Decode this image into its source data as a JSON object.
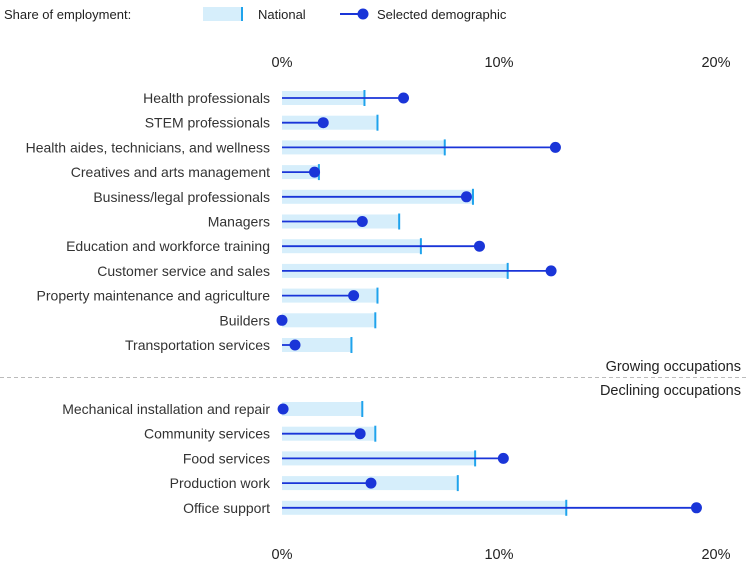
{
  "chart_data": {
    "type": "dot-bar",
    "legend_title": "Share of employment:",
    "legend": [
      {
        "name": "National",
        "style": "light bar with tick"
      },
      {
        "name": "Selected demographic",
        "style": "line with dot"
      }
    ],
    "x_axis": {
      "min": 0,
      "max": 20,
      "ticks": [
        "0%",
        "10%",
        "20%"
      ],
      "tick_values": [
        0,
        10,
        20
      ]
    },
    "sections": [
      {
        "name": "Growing occupations",
        "rows": [
          {
            "label": "Health professionals",
            "national": 3.8,
            "selected": 5.6
          },
          {
            "label": "STEM professionals",
            "national": 4.4,
            "selected": 1.9
          },
          {
            "label": "Health aides, technicians, and wellness",
            "national": 7.5,
            "selected": 12.6
          },
          {
            "label": "Creatives and arts management",
            "national": 1.7,
            "selected": 1.5
          },
          {
            "label": "Business/legal professionals",
            "national": 8.8,
            "selected": 8.5
          },
          {
            "label": "Managers",
            "national": 5.4,
            "selected": 3.7
          },
          {
            "label": "Education and workforce training",
            "national": 6.4,
            "selected": 9.1
          },
          {
            "label": "Customer service and sales",
            "national": 10.4,
            "selected": 12.4
          },
          {
            "label": "Property maintenance and agriculture",
            "national": 4.4,
            "selected": 3.3
          },
          {
            "label": "Builders",
            "national": 4.3,
            "selected": 0.0
          },
          {
            "label": "Transportation services",
            "national": 3.2,
            "selected": 0.6
          }
        ]
      },
      {
        "name": "Declining occupations",
        "rows": [
          {
            "label": "Mechanical installation and repair",
            "national": 3.7,
            "selected": 0.05
          },
          {
            "label": "Community services",
            "national": 4.3,
            "selected": 3.6
          },
          {
            "label": "Food services",
            "national": 8.9,
            "selected": 10.2
          },
          {
            "label": "Production work",
            "national": 8.1,
            "selected": 4.1
          },
          {
            "label": "Office support",
            "national": 13.1,
            "selected": 19.1
          }
        ]
      }
    ],
    "colors": {
      "bar": "#d6eefb",
      "tick": "#1fa3ec",
      "line": "#1a35d8",
      "dot": "#1a35d8",
      "divider": "#bbbbbb"
    }
  }
}
